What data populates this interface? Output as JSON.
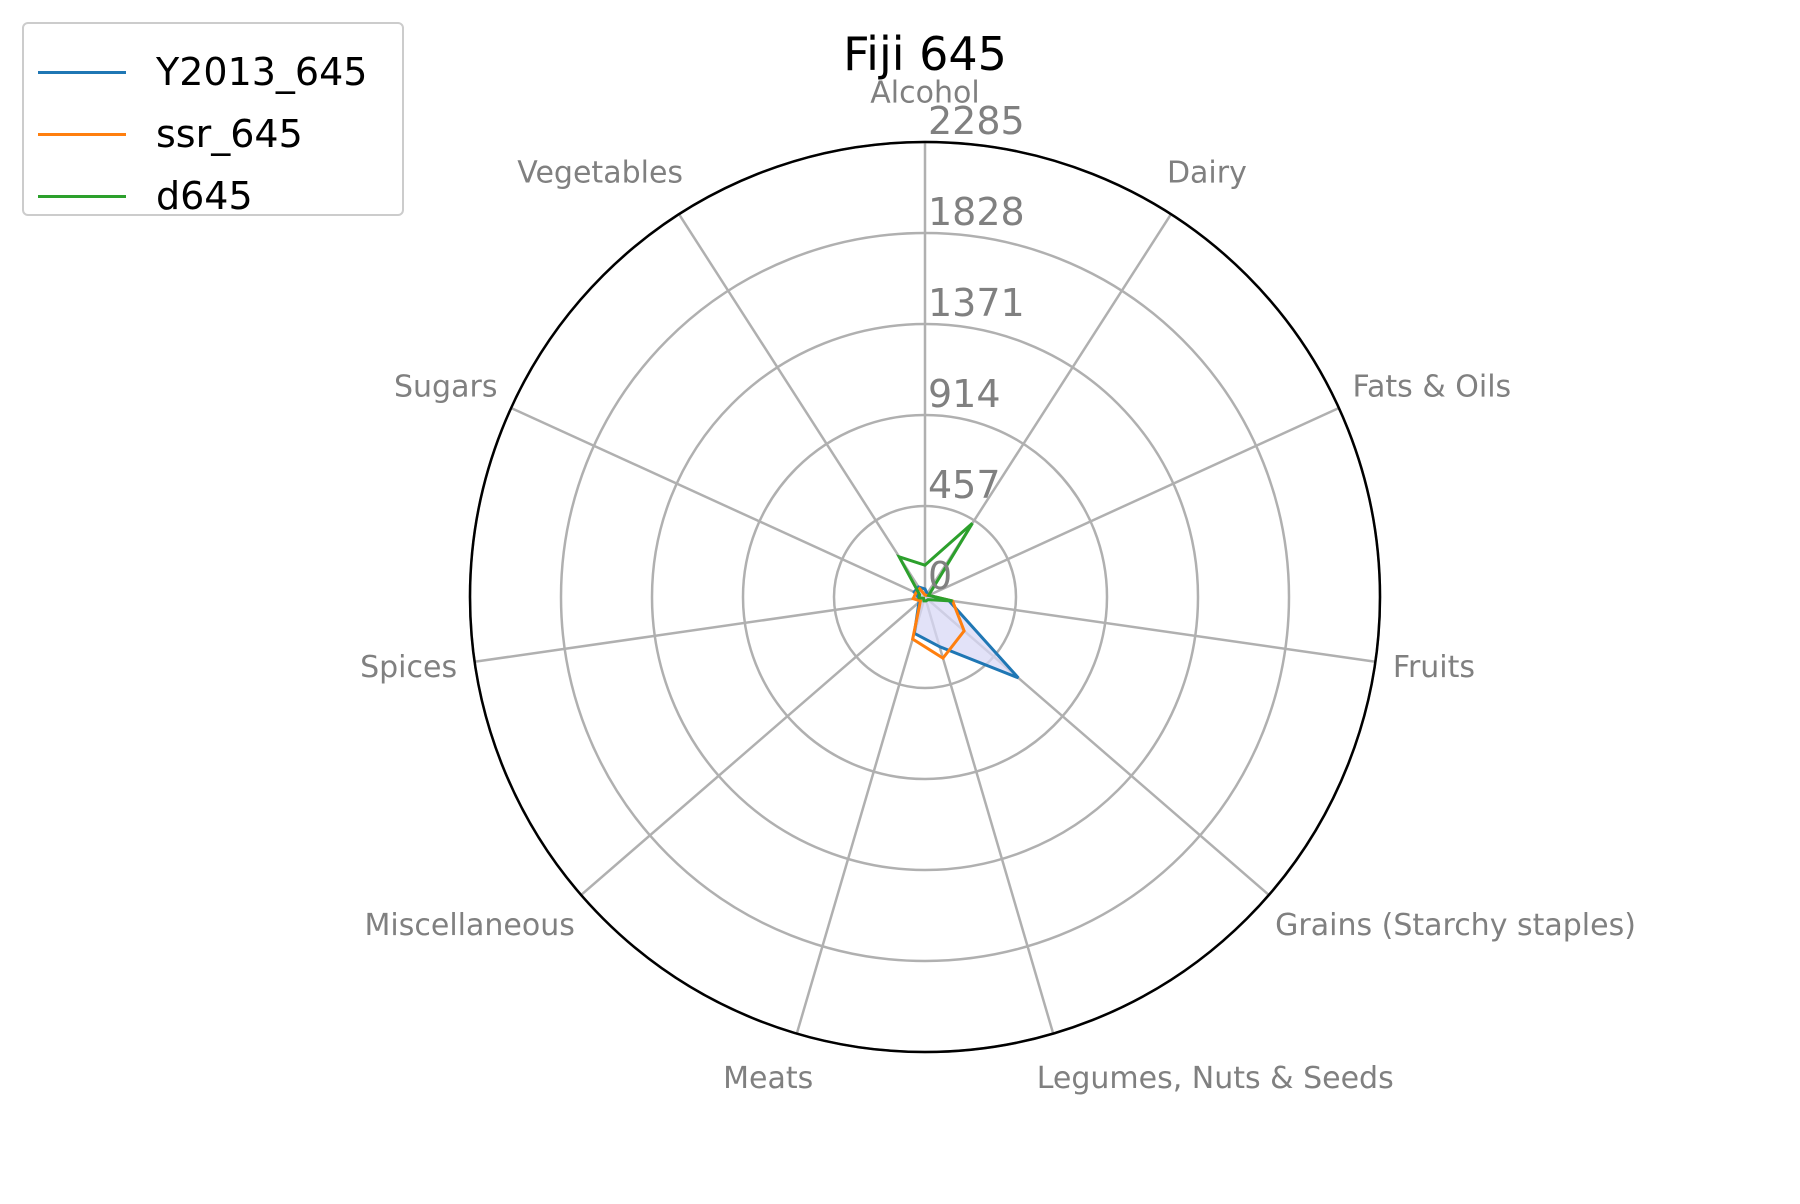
{
  "chart_data": {
    "type": "radar",
    "title": "Fiji 645",
    "categories": [
      "Alcohol",
      "Dairy",
      "Fats & Oils",
      "Fruits",
      "Grains (Starchy staples)",
      "Legumes, Nuts & Seeds",
      "Meats",
      "Miscellaneous",
      "Spices",
      "Sugars",
      "Vegetables"
    ],
    "radial_ticks": [
      "0",
      "457",
      "914",
      "1371",
      "1828",
      "2285"
    ],
    "rlim": [
      0,
      2285
    ],
    "series": [
      {
        "name": "Y2013_645",
        "color": "#1f77b4",
        "values": [
          40,
          20,
          20,
          120,
          620,
          260,
          190,
          40,
          30,
          60,
          60
        ]
      },
      {
        "name": "ssr_645",
        "color": "#ff7f0e",
        "values": [
          10,
          10,
          20,
          140,
          260,
          320,
          220,
          30,
          60,
          50,
          50
        ]
      },
      {
        "name": "d645",
        "color": "#2ca02c",
        "values": [
          160,
          440,
          20,
          140,
          20,
          20,
          20,
          10,
          30,
          30,
          240
        ]
      }
    ],
    "fill_color": "#d8d8f6",
    "grid": true,
    "legend_position": "top-left"
  }
}
